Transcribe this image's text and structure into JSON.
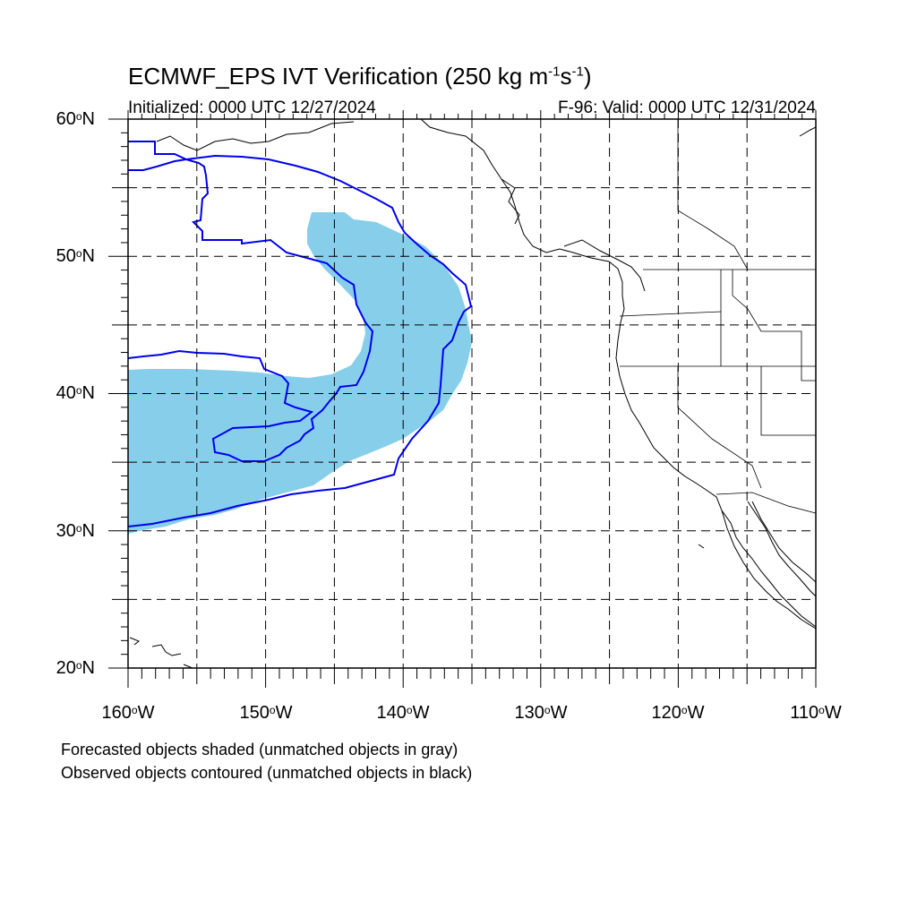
{
  "title": {
    "main": "ECMWF_EPS IVT Verification (250 kg m",
    "exp1": "-1",
    "mid": "s",
    "exp2": "-1",
    "close": ")"
  },
  "subtitle": {
    "initialized": "Initialized: 0000 UTC 12/27/2024",
    "valid": "F-96: Valid: 0000 UTC 12/31/2024"
  },
  "axes": {
    "lat_labels": [
      "60",
      "50",
      "40",
      "30",
      "20"
    ],
    "lat_suffix": "N",
    "lon_labels": [
      "160",
      "150",
      "140",
      "130",
      "120",
      "110"
    ],
    "lon_suffix": "W",
    "lon_range": [
      -160,
      -110
    ],
    "lat_range": [
      20,
      60
    ],
    "grid": "dashed, every 5 degrees"
  },
  "legend": {
    "line1": "Forecasted objects shaded (unmatched objects in gray)",
    "line2": "Observed objects contoured (unmatched objects in black)"
  },
  "colors": {
    "forecast_fill": "#87ceeb",
    "observed_contour": "#0000ee",
    "coastline": "#000000",
    "grid": "#000000"
  }
}
